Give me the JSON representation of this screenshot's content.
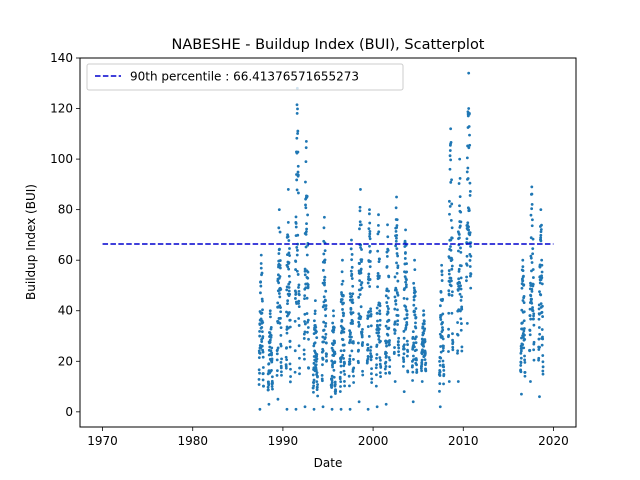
{
  "chart_data": {
    "type": "scatter",
    "title": "NABESHE - Buildup Index (BUI), Scatterplot",
    "xlabel": "Date",
    "ylabel": "Buildup Index (BUI)",
    "xlim": [
      1967.5,
      2022.5
    ],
    "ylim": [
      -6,
      140
    ],
    "xticks": [
      "1970",
      "1980",
      "1990",
      "2000",
      "2010",
      "2020"
    ],
    "yticks": [
      "0",
      "20",
      "40",
      "60",
      "80",
      "100",
      "120",
      "140"
    ],
    "grid": false,
    "legend_position": "top-left",
    "point_color": "#1f77b4",
    "reference_line": {
      "label": "90th percentile : 66.41376571655273",
      "value": 66.41376571655273,
      "x_range": [
        1970,
        2020
      ],
      "color": "#0000cd",
      "style": "dashed"
    },
    "season_clusters": [
      {
        "year": 1987,
        "min": 1,
        "max": 62
      },
      {
        "year": 1988,
        "min": 3,
        "max": 40
      },
      {
        "year": 1989,
        "min": 5,
        "max": 80
      },
      {
        "year": 1990,
        "min": 1,
        "max": 88
      },
      {
        "year": 1991,
        "min": 1,
        "max": 128
      },
      {
        "year": 1992,
        "min": 2,
        "max": 107
      },
      {
        "year": 1993,
        "min": 1,
        "max": 44
      },
      {
        "year": 1994,
        "min": 2,
        "max": 77
      },
      {
        "year": 1995,
        "min": 1,
        "max": 40
      },
      {
        "year": 1996,
        "min": 1,
        "max": 60
      },
      {
        "year": 1997,
        "min": 1,
        "max": 68
      },
      {
        "year": 1998,
        "min": 4,
        "max": 88
      },
      {
        "year": 1999,
        "min": 1,
        "max": 80
      },
      {
        "year": 2000,
        "min": 2,
        "max": 78
      },
      {
        "year": 2001,
        "min": 3,
        "max": 74
      },
      {
        "year": 2002,
        "min": 12,
        "max": 85
      },
      {
        "year": 2003,
        "min": 8,
        "max": 72
      },
      {
        "year": 2004,
        "min": 4,
        "max": 60
      },
      {
        "year": 2005,
        "min": 12,
        "max": 40
      },
      {
        "year": 2007,
        "min": 2,
        "max": 58
      },
      {
        "year": 2008,
        "min": 12,
        "max": 112
      },
      {
        "year": 2009,
        "min": 12,
        "max": 100
      },
      {
        "year": 2010,
        "min": 35,
        "max": 134
      },
      {
        "year": 2016,
        "min": 7,
        "max": 60
      },
      {
        "year": 2017,
        "min": 12,
        "max": 89
      },
      {
        "year": 2018,
        "min": 6,
        "max": 80
      }
    ]
  }
}
